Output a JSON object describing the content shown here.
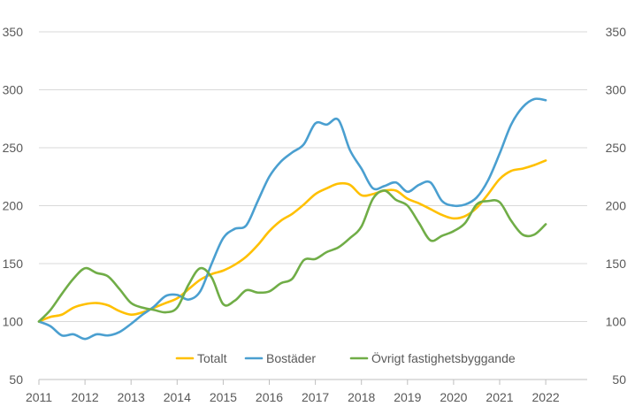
{
  "chart_data": {
    "type": "line",
    "title": "",
    "xlabel": "",
    "ylabel": "",
    "ylim": [
      50,
      350
    ],
    "xlim": [
      2011,
      2022.9
    ],
    "y_ticks": [
      {
        "value": 50,
        "label": "50"
      },
      {
        "value": 100,
        "label": "100"
      },
      {
        "value": 150,
        "label": "150"
      },
      {
        "value": 200,
        "label": "200"
      },
      {
        "value": 250,
        "label": "250"
      },
      {
        "value": 300,
        "label": "300"
      },
      {
        "value": 350,
        "label": "350"
      }
    ],
    "x_ticks": [
      {
        "value": 2011,
        "label": "2011"
      },
      {
        "value": 2012,
        "label": "2012"
      },
      {
        "value": 2013,
        "label": "2013"
      },
      {
        "value": 2014,
        "label": "2014"
      },
      {
        "value": 2015,
        "label": "2015"
      },
      {
        "value": 2016,
        "label": "2016"
      },
      {
        "value": 2017,
        "label": "2017"
      },
      {
        "value": 2018,
        "label": "2018"
      },
      {
        "value": 2019,
        "label": "2019"
      },
      {
        "value": 2020,
        "label": "2020"
      },
      {
        "value": 2021,
        "label": "2021"
      },
      {
        "value": 2022,
        "label": "2022"
      }
    ],
    "grid": true,
    "secondary_y_axis": true,
    "legend_position": "bottom-center inside plot",
    "series": [
      {
        "name": "Totalt",
        "color": "#FFC000",
        "x": [
          2011.0,
          2011.25,
          2011.5,
          2011.75,
          2012.0,
          2012.25,
          2012.5,
          2012.75,
          2013.0,
          2013.25,
          2013.5,
          2013.75,
          2014.0,
          2014.25,
          2014.5,
          2014.75,
          2015.0,
          2015.25,
          2015.5,
          2015.75,
          2016.0,
          2016.25,
          2016.5,
          2016.75,
          2017.0,
          2017.25,
          2017.5,
          2017.75,
          2018.0,
          2018.25,
          2018.5,
          2018.75,
          2019.0,
          2019.25,
          2019.5,
          2019.75,
          2020.0,
          2020.25,
          2020.5,
          2020.75,
          2021.0,
          2021.25,
          2021.5,
          2021.75,
          2022.0
        ],
        "y": [
          100,
          104,
          106,
          112,
          115,
          116,
          114,
          109,
          106,
          108,
          112,
          116,
          120,
          128,
          136,
          141,
          144,
          149,
          156,
          166,
          178,
          187,
          193,
          201,
          210,
          215,
          219,
          218,
          209,
          210,
          213,
          213,
          206,
          202,
          197,
          192,
          189,
          191,
          198,
          210,
          223,
          230,
          232,
          235,
          239
        ]
      },
      {
        "name": "Bostäder",
        "color": "#4A9FD0",
        "x": [
          2011.0,
          2011.25,
          2011.5,
          2011.75,
          2012.0,
          2012.25,
          2012.5,
          2012.75,
          2013.0,
          2013.25,
          2013.5,
          2013.75,
          2014.0,
          2014.25,
          2014.5,
          2014.75,
          2015.0,
          2015.25,
          2015.5,
          2015.75,
          2016.0,
          2016.25,
          2016.5,
          2016.75,
          2017.0,
          2017.25,
          2017.5,
          2017.75,
          2018.0,
          2018.25,
          2018.5,
          2018.75,
          2019.0,
          2019.25,
          2019.5,
          2019.75,
          2020.0,
          2020.25,
          2020.5,
          2020.75,
          2021.0,
          2021.25,
          2021.5,
          2021.75,
          2022.0
        ],
        "y": [
          100,
          96,
          88,
          89,
          85,
          89,
          88,
          91,
          98,
          106,
          113,
          122,
          123,
          119,
          126,
          150,
          172,
          180,
          183,
          204,
          225,
          238,
          246,
          253,
          271,
          270,
          274,
          248,
          232,
          215,
          217,
          220,
          212,
          218,
          220,
          204,
          200,
          201,
          207,
          222,
          245,
          270,
          285,
          292,
          291
        ]
      },
      {
        "name": "Övrigt fastighetsbyggande",
        "color": "#70AD47",
        "x": [
          2011.0,
          2011.25,
          2011.5,
          2011.75,
          2012.0,
          2012.25,
          2012.5,
          2012.75,
          2013.0,
          2013.25,
          2013.5,
          2013.75,
          2014.0,
          2014.25,
          2014.5,
          2014.75,
          2015.0,
          2015.25,
          2015.5,
          2015.75,
          2016.0,
          2016.25,
          2016.5,
          2016.75,
          2017.0,
          2017.25,
          2017.5,
          2017.75,
          2018.0,
          2018.25,
          2018.5,
          2018.75,
          2019.0,
          2019.25,
          2019.5,
          2019.75,
          2020.0,
          2020.25,
          2020.5,
          2020.75,
          2021.0,
          2021.25,
          2021.5,
          2021.75,
          2022.0
        ],
        "y": [
          100,
          110,
          124,
          137,
          146,
          142,
          139,
          128,
          116,
          112,
          110,
          108,
          112,
          132,
          146,
          138,
          115,
          118,
          127,
          125,
          126,
          133,
          137,
          153,
          154,
          160,
          164,
          172,
          182,
          206,
          213,
          205,
          200,
          185,
          170,
          174,
          178,
          185,
          201,
          204,
          203,
          187,
          175,
          175,
          184
        ]
      }
    ]
  }
}
